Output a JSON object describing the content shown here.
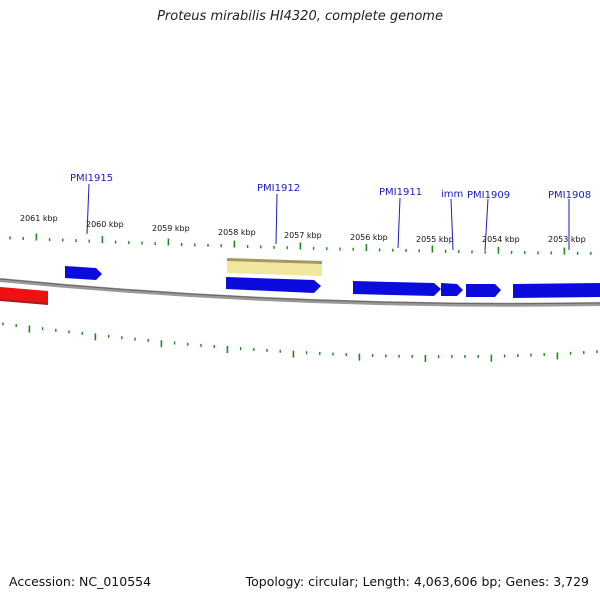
{
  "title": "Proteus mirabilis HI4320, complete genome",
  "footer": {
    "accession": "Accession: NC_010554",
    "summary": "Topology: circular; Length: 4,063,606 bp; Genes: 3,729"
  },
  "scale_labels": [
    "2061 kbp",
    "2060 kbp",
    "2059 kbp",
    "2058 kbp",
    "2057 kbp",
    "2056 kbp",
    "2055 kbp",
    "2054 kbp",
    "2053 kbp"
  ],
  "gene_labels": [
    "PMI1915",
    "PMI1912",
    "PMI1911",
    "imm",
    "PMI1909",
    "PMI1908"
  ],
  "colors": {
    "forward_gene": "#0b0bdd",
    "reverse_gene": "#ee1111",
    "highlight": "#efe7a0",
    "genome_line": "#888888",
    "tick": "#1a8a1a",
    "label": "#1a1acc"
  }
}
